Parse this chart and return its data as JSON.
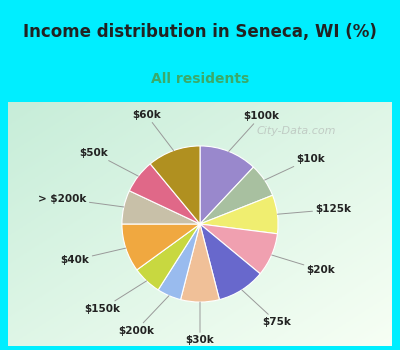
{
  "title": "Income distribution in Seneca, WI (%)",
  "subtitle": "All residents",
  "title_color": "#222222",
  "subtitle_color": "#3aaa6a",
  "bg_cyan": "#00eeff",
  "bg_chart_top_left": "#c8e8d8",
  "bg_chart_bottom_right": "#f0f8f0",
  "watermark": "City-Data.com",
  "labels": [
    "$100k",
    "$10k",
    "$125k",
    "$20k",
    "$75k",
    "$30k",
    "$200k",
    "$150k",
    "$40k",
    "> $200k",
    "$50k",
    "$60k"
  ],
  "sizes": [
    12,
    7,
    8,
    9,
    10,
    8,
    5,
    6,
    10,
    7,
    7,
    11
  ],
  "colors": [
    "#9988cc",
    "#a8c0a0",
    "#f0ee70",
    "#f0a0b0",
    "#6868cc",
    "#f0c098",
    "#99bbee",
    "#c8d840",
    "#f0a840",
    "#c8c0a8",
    "#e06888",
    "#b09020"
  ],
  "startangle": 90,
  "label_fontsize": 7.5,
  "title_fontsize": 12,
  "subtitle_fontsize": 10
}
